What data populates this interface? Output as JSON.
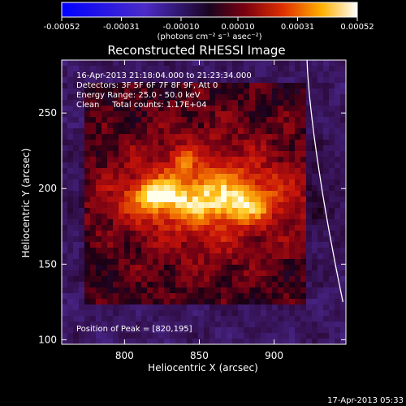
{
  "colorbar": {
    "tick_labels": [
      "-0.00052",
      "-0.00031",
      "-0.00010",
      "0.00010",
      "0.00031",
      "0.00052"
    ],
    "tick_values": [
      -0.00052,
      -0.00031,
      -0.0001,
      0.0001,
      0.00031,
      0.00052
    ],
    "range": [
      -0.00052,
      0.00052
    ],
    "unit_label": "(photons cm⁻² s⁻¹ asec⁻²)"
  },
  "chart_data": {
    "type": "heatmap",
    "title": "Reconstructed RHESSI Image",
    "xlabel": "Heliocentric X (arcsec)",
    "ylabel": "Heliocentric Y (arcsec)",
    "xlim": [
      758,
      948
    ],
    "ylim": [
      97,
      285
    ],
    "x_ticks": [
      800,
      850,
      900
    ],
    "y_ticks": [
      100,
      150,
      200,
      250
    ],
    "colormap": "rhessi-red-yellow-white (negatives purple-blue)",
    "annotations": [
      "16-Apr-2013 21:18:04.000 to 21:23:34.000",
      "Detectors: 3F 5F 6F 7F 8F 9F, Att 0",
      "Energy Range: 25.0 - 50.0 keV",
      "Clean     Total counts: 1.17E+04"
    ],
    "peak_label": "Position of Peak = [820,195]",
    "peak": {
      "x": 820,
      "y": 195
    },
    "bright_region": {
      "x_range": [
        805,
        905
      ],
      "y_range": [
        178,
        210
      ]
    },
    "secondary_source": {
      "x": 840,
      "y": 220
    },
    "limb": "solar limb arc from (922, 285) to (946, 125)"
  },
  "timestamp": "17-Apr-2013 05:33"
}
